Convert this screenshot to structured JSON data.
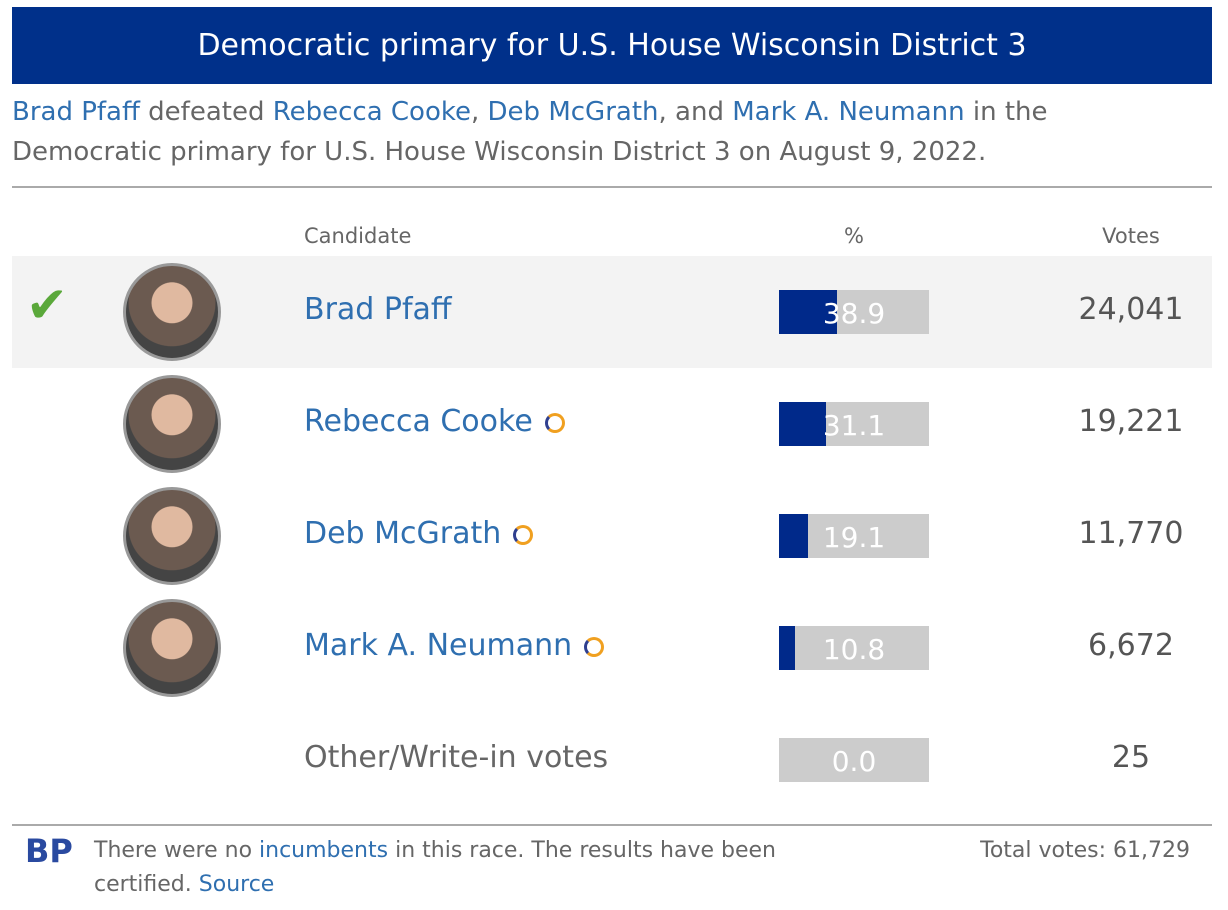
{
  "header": {
    "title": "Democratic primary for U.S. House Wisconsin District 3"
  },
  "intro": [
    {
      "text": "Brad Pfaff",
      "link": true
    },
    {
      "text": " defeated ",
      "link": false
    },
    {
      "text": "Rebecca Cooke",
      "link": true
    },
    {
      "text": ", ",
      "link": false
    },
    {
      "text": "Deb McGrath",
      "link": true
    },
    {
      "text": ", and ",
      "link": false
    },
    {
      "text": "Mark A. Neumann",
      "link": true
    },
    {
      "text": " in the Democratic primary for U.S. House Wisconsin District 3 on August 9, 2022.",
      "link": false
    }
  ],
  "table": {
    "columns": [
      "Candidate",
      "%",
      "Votes"
    ],
    "rows": [
      {
        "name": "Brad Pfaff",
        "pct": 38.9,
        "votes": "24,041",
        "winner": true,
        "photo": true,
        "icon": false
      },
      {
        "name": "Rebecca Cooke",
        "pct": 31.1,
        "votes": "19,221",
        "winner": false,
        "photo": true,
        "icon": true
      },
      {
        "name": "Deb McGrath",
        "pct": 19.1,
        "votes": "11,770",
        "winner": false,
        "photo": true,
        "icon": true
      },
      {
        "name": "Mark A. Neumann",
        "pct": 10.8,
        "votes": "6,672",
        "winner": false,
        "photo": true,
        "icon": true
      },
      {
        "name": "Other/Write-in votes",
        "pct": {
          "value": 0,
          "label": "0.0"
        },
        "votes": "25",
        "winner": false,
        "photo": false,
        "icon": false
      }
    ]
  },
  "footer": {
    "logo": "BP",
    "note": [
      {
        "text": "There were no ",
        "link": false
      },
      {
        "text": "incumbents",
        "link": true
      },
      {
        "text": " in this race. The results have been certified. ",
        "link": false
      },
      {
        "text": "Source",
        "link": true
      }
    ],
    "total": "Total votes: 61,729"
  }
}
